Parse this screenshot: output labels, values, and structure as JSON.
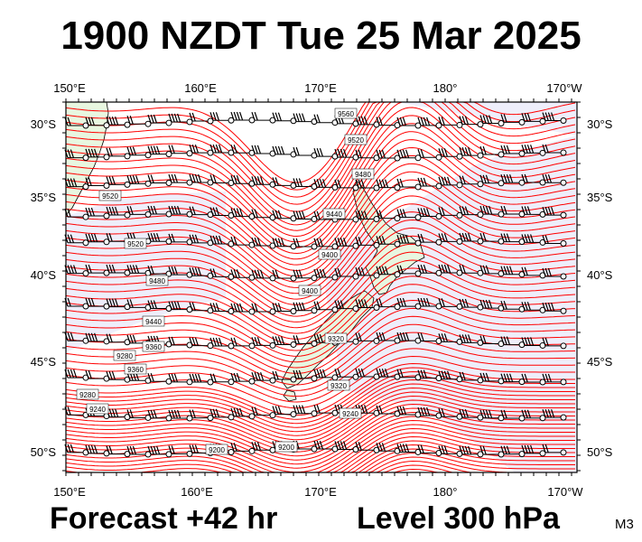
{
  "title": "1900 NZDT Tue 25 Mar 2025",
  "footer": {
    "forecast": "Forecast +42 hr",
    "level": "Level 300 hPa",
    "model": "M3"
  },
  "axes": {
    "lon_labels": [
      "150°E",
      "160°E",
      "170°E",
      "180°",
      "170°W"
    ],
    "lat_labels": [
      "30°S",
      "35°S",
      "40°S",
      "45°S",
      "50°S"
    ]
  },
  "contour_labels": [
    "9560",
    "9520",
    "9480",
    "9520",
    "9520",
    "9440",
    "9400",
    "9480",
    "9440",
    "9400",
    "9360",
    "9320",
    "9360",
    "9320",
    "9280",
    "9280",
    "9240",
    "9240",
    "9200",
    "9200"
  ],
  "colors": {
    "contour": "#ff0000",
    "land": "#e8f7e0",
    "sea": "#ffffff",
    "lowregion": "#eeeefb",
    "barb": "#000000"
  }
}
